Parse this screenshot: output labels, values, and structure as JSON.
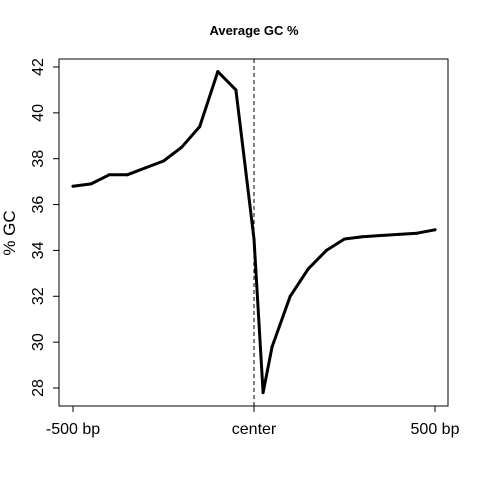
{
  "chart_data": {
    "type": "line",
    "title": "Average GC %",
    "xlabel": "",
    "ylabel": "% GC",
    "x_ticks": [
      {
        "x": -500,
        "label": "-500 bp"
      },
      {
        "x": 0,
        "label": "center"
      },
      {
        "x": 500,
        "label": "500 bp"
      }
    ],
    "y_ticks": [
      28,
      30,
      32,
      34,
      36,
      38,
      40,
      42
    ],
    "xlim": [
      -500,
      500
    ],
    "ylim": [
      27.5,
      42.2
    ],
    "reference_line": {
      "x": 0,
      "style": "dashed"
    },
    "grid": false,
    "series": [
      {
        "color": "#000000",
        "x": [
          -500,
          -450,
          -400,
          -350,
          -300,
          -250,
          -200,
          -150,
          -100,
          -50,
          0,
          25,
          50,
          100,
          150,
          200,
          250,
          300,
          350,
          400,
          450,
          500
        ],
        "y": [
          36.8,
          36.9,
          37.3,
          37.3,
          37.6,
          37.9,
          38.5,
          39.4,
          41.8,
          41.0,
          34.5,
          27.8,
          29.8,
          32.0,
          33.2,
          34.0,
          34.5,
          34.6,
          34.65,
          34.7,
          34.75,
          34.9
        ]
      }
    ]
  }
}
